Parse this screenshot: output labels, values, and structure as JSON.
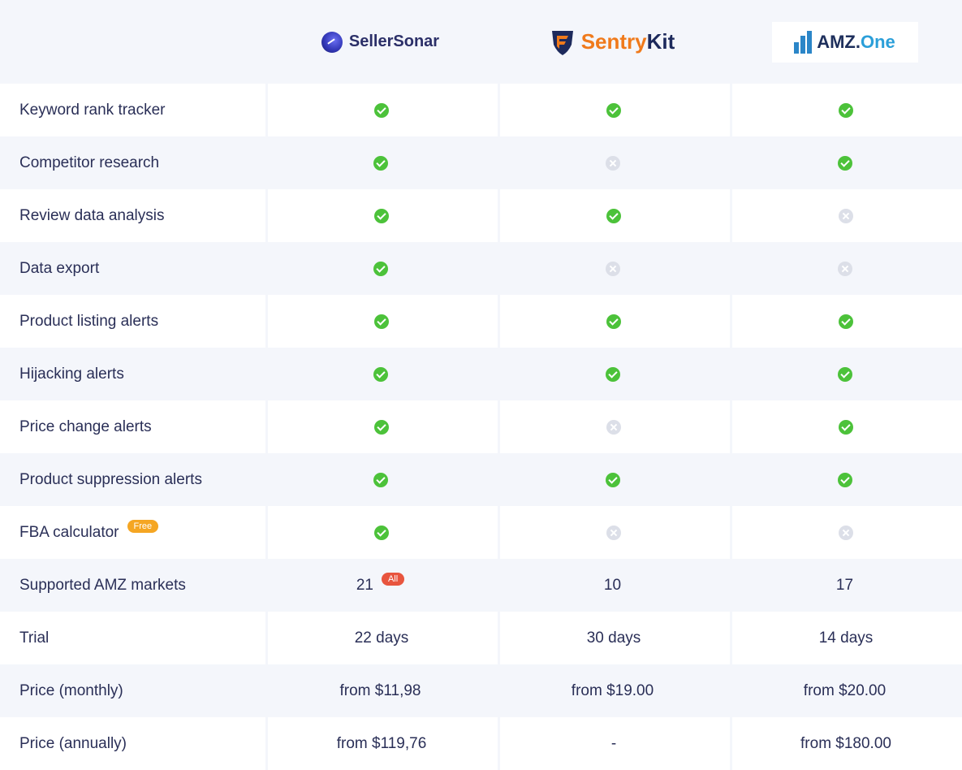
{
  "header": {
    "tools": [
      {
        "name": "SellerSonar"
      },
      {
        "name_a": "Sentry",
        "name_b": "Kit"
      },
      {
        "name_a": "AMZ.",
        "name_b": "One"
      }
    ]
  },
  "rows": [
    {
      "label": "Keyword rank tracker",
      "values": [
        "yes",
        "yes",
        "yes"
      ]
    },
    {
      "label": "Competitor research",
      "values": [
        "yes",
        "no",
        "yes"
      ]
    },
    {
      "label": "Review data analysis",
      "values": [
        "yes",
        "yes",
        "no"
      ]
    },
    {
      "label": "Data export",
      "values": [
        "yes",
        "no",
        "no"
      ]
    },
    {
      "label": "Product listing alerts",
      "values": [
        "yes",
        "yes",
        "yes"
      ]
    },
    {
      "label": "Hijacking alerts",
      "values": [
        "yes",
        "yes",
        "yes"
      ]
    },
    {
      "label": "Price change alerts",
      "values": [
        "yes",
        "no",
        "yes"
      ]
    },
    {
      "label": "Product suppression alerts",
      "values": [
        "yes",
        "yes",
        "yes"
      ]
    },
    {
      "label": "FBA calculator",
      "badge": "Free",
      "values": [
        "yes",
        "no",
        "no"
      ]
    },
    {
      "label": "Supported AMZ markets",
      "values": [
        "21",
        "10",
        "17"
      ],
      "value_badge": "All"
    },
    {
      "label": "Trial",
      "values": [
        "22 days",
        "30 days",
        "14 days"
      ]
    },
    {
      "label": "Price (monthly)",
      "values": [
        "from $11,98",
        "from $19.00",
        "from $20.00"
      ]
    },
    {
      "label": "Price (annually)",
      "values": [
        "from $119,76",
        "-",
        "from $180.00"
      ]
    }
  ],
  "colors": {
    "check": "#4cc23a",
    "cross": "#dcdfe8",
    "badge_free": "#f5a623",
    "badge_all": "#e8553e"
  }
}
